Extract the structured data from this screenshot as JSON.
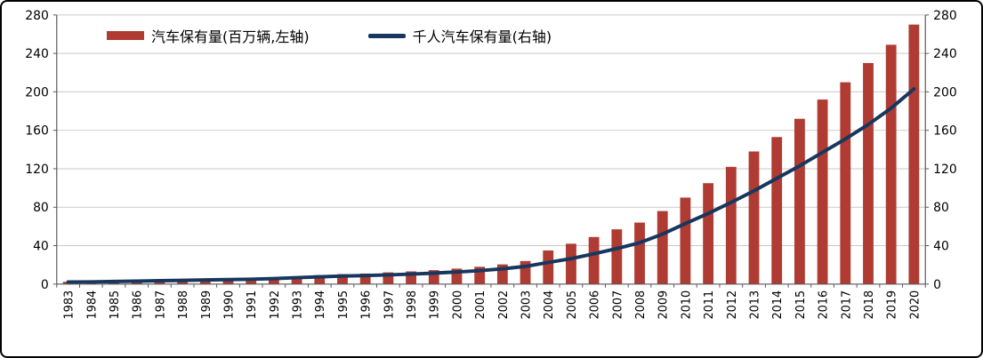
{
  "chart_data": {
    "type": "bar",
    "title": "",
    "categories": [
      "1983",
      "1984",
      "1985",
      "1986",
      "1987",
      "1988",
      "1989",
      "1990",
      "1991",
      "1992",
      "1993",
      "1994",
      "1995",
      "1996",
      "1997",
      "1998",
      "1999",
      "2000",
      "2001",
      "2002",
      "2003",
      "2004",
      "2005",
      "2006",
      "2007",
      "2008",
      "2009",
      "2010",
      "2011",
      "2012",
      "2013",
      "2014",
      "2015",
      "2016",
      "2017",
      "2018",
      "2019",
      "2020"
    ],
    "series": [
      {
        "name": "汽车保有量(百万辆,左轴)",
        "type": "bar",
        "axis": "left",
        "color": "#AF3B32",
        "values": [
          2.4,
          2.7,
          3.2,
          3.6,
          4.1,
          4.6,
          5.1,
          5.5,
          6.1,
          6.9,
          8.2,
          9.4,
          10.4,
          11.0,
          12.2,
          13.2,
          14.5,
          16.1,
          18.0,
          20.5,
          24.0,
          35.0,
          42.0,
          49.0,
          57.0,
          64.0,
          76.0,
          90.0,
          105.0,
          122.0,
          138.0,
          153.0,
          172.0,
          192.0,
          210.0,
          230.0,
          249.0,
          270.0
        ]
      },
      {
        "name": "千人汽车保有量(右轴)",
        "type": "line",
        "axis": "right",
        "color": "#17375E",
        "values": [
          2.1,
          2.3,
          2.7,
          3.1,
          3.5,
          3.9,
          4.3,
          4.7,
          5.1,
          5.7,
          6.7,
          7.6,
          8.4,
          8.9,
          9.6,
          10.4,
          11.4,
          12.6,
          14.0,
          15.9,
          18.4,
          22.5,
          26.5,
          31.5,
          37.0,
          43.0,
          52.0,
          63.0,
          73.5,
          85.0,
          97.0,
          110.0,
          123.0,
          137.0,
          151.0,
          166.0,
          183.0,
          203.0
        ]
      }
    ],
    "left_axis": {
      "min": 0,
      "max": 280,
      "ticks": [
        0,
        40,
        80,
        120,
        160,
        200,
        240,
        280
      ]
    },
    "right_axis": {
      "min": 0,
      "max": 280,
      "ticks": [
        0,
        40,
        80,
        120,
        160,
        200,
        240,
        280
      ]
    },
    "grid": "horizontal",
    "legend_position": "top-inside"
  },
  "colors": {
    "background": "#FFFFFF",
    "border": "#000000",
    "grid": "#C9C9C9",
    "axis": "#595959",
    "text": "#000000"
  }
}
